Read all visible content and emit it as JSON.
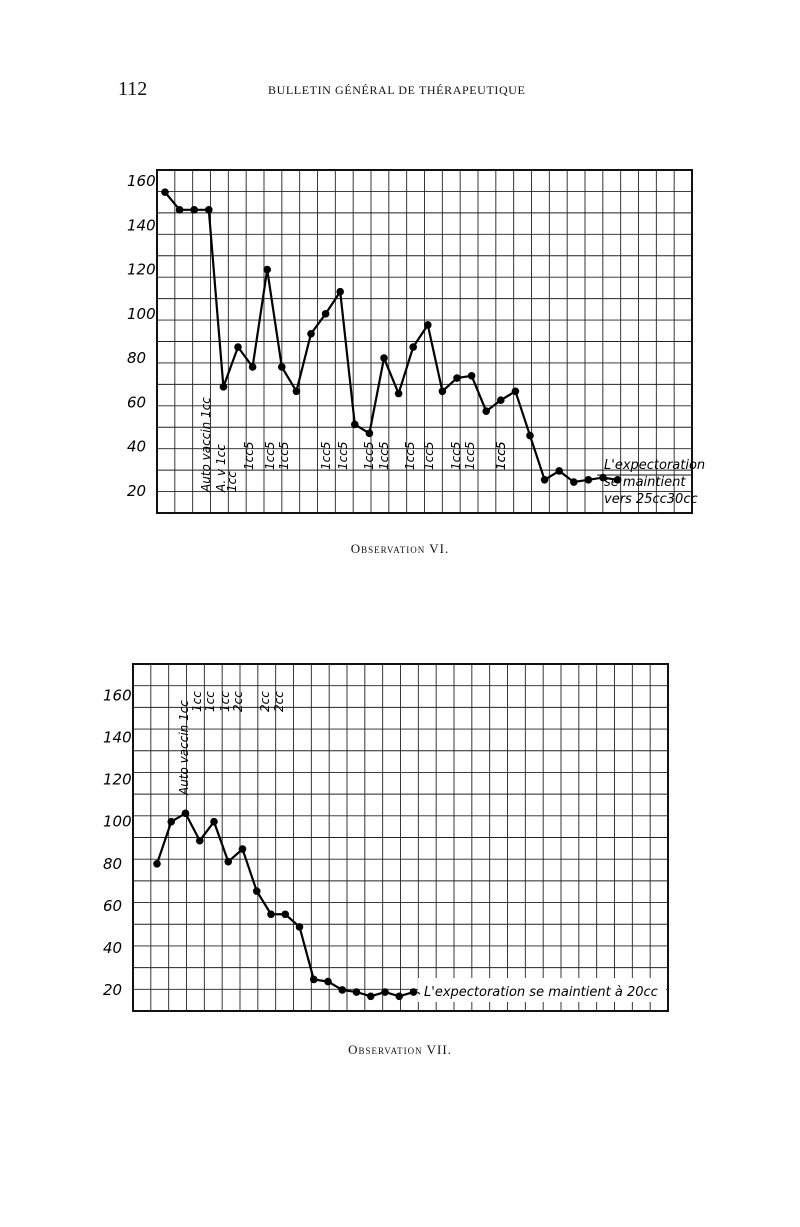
{
  "header": {
    "page_number": "112",
    "running_title": "BULLETIN GÉNÉRAL DE THÉRAPEUTIQUE"
  },
  "chart_data": [
    {
      "type": "line",
      "caption": "Observation VI.",
      "y_tick_labels": [
        "160",
        "140",
        "120",
        "100",
        "80",
        "60",
        "40",
        "20"
      ],
      "ylim": [
        10,
        165
      ],
      "grid": true,
      "series": [
        {
          "values": [
            155,
            147,
            147,
            147,
            67,
            85,
            76,
            120,
            76,
            65,
            91,
            100,
            110,
            50,
            46,
            80,
            64,
            85,
            95,
            65,
            71,
            72,
            56,
            61,
            65,
            45,
            25,
            29,
            24,
            25,
            26,
            25
          ]
        }
      ],
      "annotations": [
        "Auto vaccin 1cc",
        "A. v 1cc",
        "1cc",
        "1cc5",
        "1cc5",
        "1cc5",
        "1cc5",
        "1cc5",
        "1cc5",
        "1cc5",
        "1cc5",
        "1cc5",
        "1cc5",
        "1cc5",
        "1cc5",
        "1cc5"
      ],
      "note_lines": [
        "L'expectoration",
        "se maintient",
        "vers 25cc30cc"
      ]
    },
    {
      "type": "line",
      "caption": "Observation VII.",
      "y_tick_labels": [
        "160",
        "140",
        "120",
        "100",
        "80",
        "60",
        "40",
        "20"
      ],
      "ylim": [
        10,
        175
      ],
      "grid": true,
      "series": [
        {
          "values": [
            80,
            100,
            104,
            91,
            100,
            81,
            87,
            67,
            56,
            56,
            50,
            25,
            24,
            20,
            19,
            17,
            19,
            17,
            19
          ]
        }
      ],
      "annotations": [
        "Auto vaccin 1cc",
        "1cc",
        "1cc",
        "1cc",
        "2cc",
        "2cc",
        "2cc"
      ],
      "note": "L'expectoration se maintient à 20cc"
    }
  ]
}
